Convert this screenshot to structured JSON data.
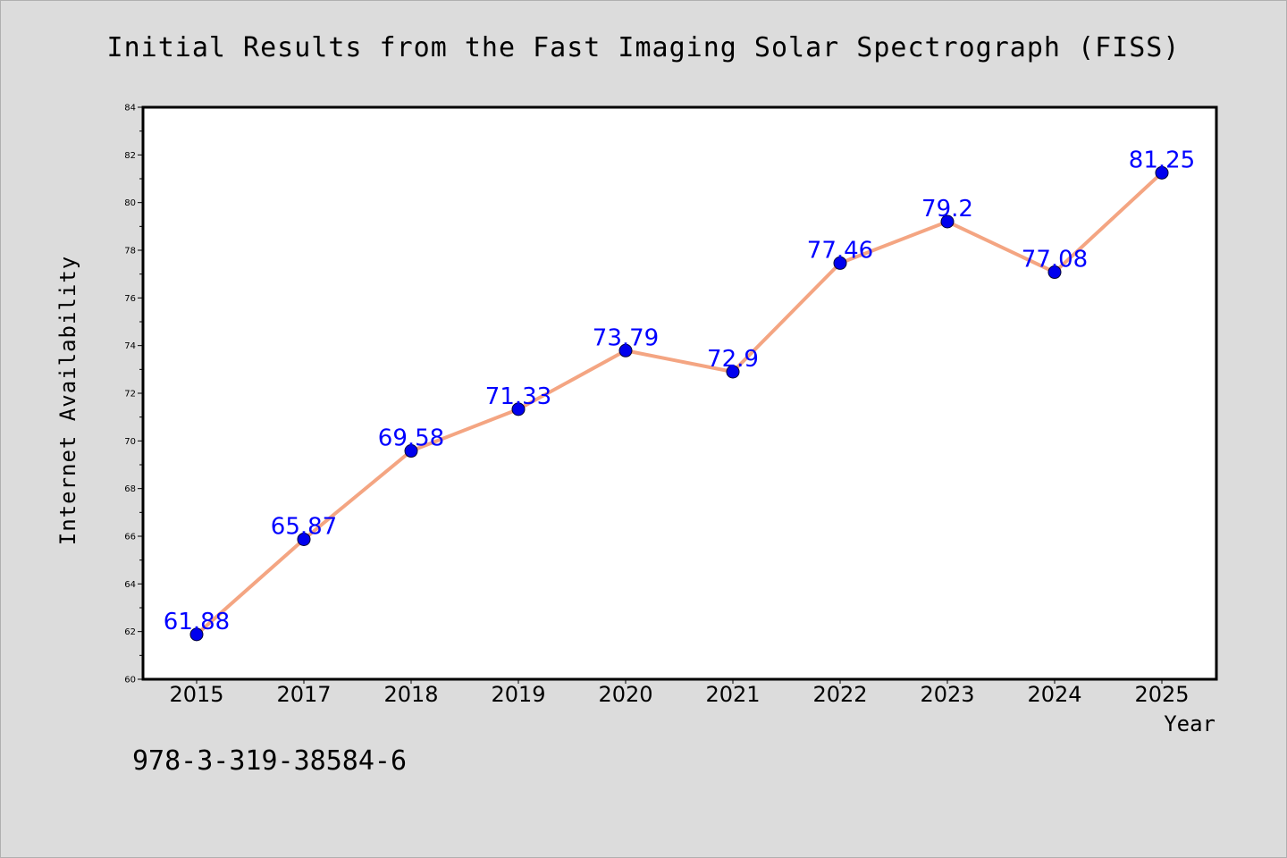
{
  "chart_data": {
    "type": "line",
    "title": "Initial Results from the Fast Imaging Solar Spectrograph (FISS)",
    "xlabel": "Year",
    "ylabel": "Internet Availability",
    "categories": [
      "2015",
      "2017",
      "2018",
      "2019",
      "2020",
      "2021",
      "2022",
      "2023",
      "2024",
      "2025"
    ],
    "series": [
      {
        "values": [
          61.88,
          65.87,
          69.58,
          71.33,
          73.79,
          72.9,
          77.46,
          79.2,
          77.08,
          81.25
        ],
        "data_labels": [
          "61.88",
          "65.87",
          "69.58",
          "71.33",
          "73.79",
          "72.9",
          "77.46",
          "79.2",
          "77.08",
          "81.25"
        ],
        "line_color": "#f4a582",
        "marker_color": "#0000ee",
        "label_color": "#0000ff"
      }
    ],
    "ylim": [
      60,
      84
    ],
    "yticks": [
      60,
      62,
      64,
      66,
      68,
      70,
      72,
      74,
      76,
      78,
      80,
      82,
      84
    ],
    "grid": false,
    "legend": "none"
  },
  "footer": {
    "isbn": "978-3-319-38584-6"
  }
}
